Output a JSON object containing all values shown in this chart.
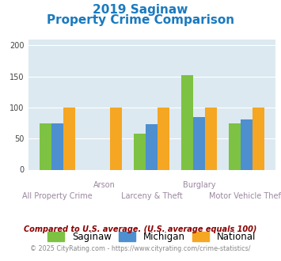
{
  "title_line1": "2019 Saginaw",
  "title_line2": "Property Crime Comparison",
  "title_color": "#1a7abf",
  "saginaw": [
    74,
    0,
    58,
    152,
    74
  ],
  "michigan": [
    75,
    0,
    73,
    85,
    81
  ],
  "national": [
    100,
    100,
    100,
    100,
    100
  ],
  "colors": {
    "saginaw": "#7dc242",
    "michigan": "#4d8fcf",
    "national": "#f5a623"
  },
  "ylim": [
    0,
    210
  ],
  "yticks": [
    0,
    50,
    100,
    150,
    200
  ],
  "plot_bg": "#dce9f0",
  "legend_labels": [
    "Saginaw",
    "Michigan",
    "National"
  ],
  "x_top_labels": [
    "",
    "Arson",
    "",
    "Burglary",
    ""
  ],
  "x_bot_labels": [
    "All Property Crime",
    "",
    "Larceny & Theft",
    "",
    "Motor Vehicle Theft"
  ],
  "footnote": "Compared to U.S. average. (U.S. average equals 100)",
  "footnote2": "© 2025 CityRating.com - https://www.cityrating.com/crime-statistics/",
  "footnote_color": "#8b0000",
  "footnote2_color": "#888888",
  "label_color": "#9b87a0"
}
